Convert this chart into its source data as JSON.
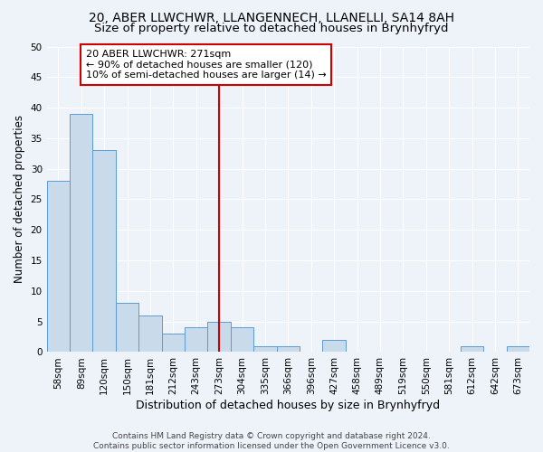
{
  "title": "20, ABER LLWCHWR, LLANGENNECH, LLANELLI, SA14 8AH",
  "subtitle": "Size of property relative to detached houses in Brynhyfryd",
  "xlabel": "Distribution of detached houses by size in Brynhyfryd",
  "ylabel": "Number of detached properties",
  "categories": [
    "58sqm",
    "89sqm",
    "120sqm",
    "150sqm",
    "181sqm",
    "212sqm",
    "243sqm",
    "273sqm",
    "304sqm",
    "335sqm",
    "366sqm",
    "396sqm",
    "427sqm",
    "458sqm",
    "489sqm",
    "519sqm",
    "550sqm",
    "581sqm",
    "612sqm",
    "642sqm",
    "673sqm"
  ],
  "values": [
    28,
    39,
    33,
    8,
    6,
    3,
    4,
    5,
    4,
    1,
    1,
    0,
    2,
    0,
    0,
    0,
    0,
    0,
    1,
    0,
    1
  ],
  "bar_color": "#c9daea",
  "bar_edge_color": "#5b9bd5",
  "vline_x_index": 7,
  "vline_color": "#cc0000",
  "annotation_line1": "20 ABER LLWCHWR: 271sqm",
  "annotation_line2": "← 90% of detached houses are smaller (120)",
  "annotation_line3": "10% of semi-detached houses are larger (14) →",
  "annotation_box_color": "white",
  "annotation_box_edge": "#cc0000",
  "ylim": [
    0,
    50
  ],
  "yticks": [
    0,
    5,
    10,
    15,
    20,
    25,
    30,
    35,
    40,
    45,
    50
  ],
  "footer_text": "Contains HM Land Registry data © Crown copyright and database right 2024.\nContains public sector information licensed under the Open Government Licence v3.0.",
  "title_fontsize": 10,
  "subtitle_fontsize": 9.5,
  "xlabel_fontsize": 9,
  "ylabel_fontsize": 8.5,
  "tick_fontsize": 7.5,
  "annotation_fontsize": 8,
  "footer_fontsize": 6.5,
  "background_color": "#eef2f9"
}
